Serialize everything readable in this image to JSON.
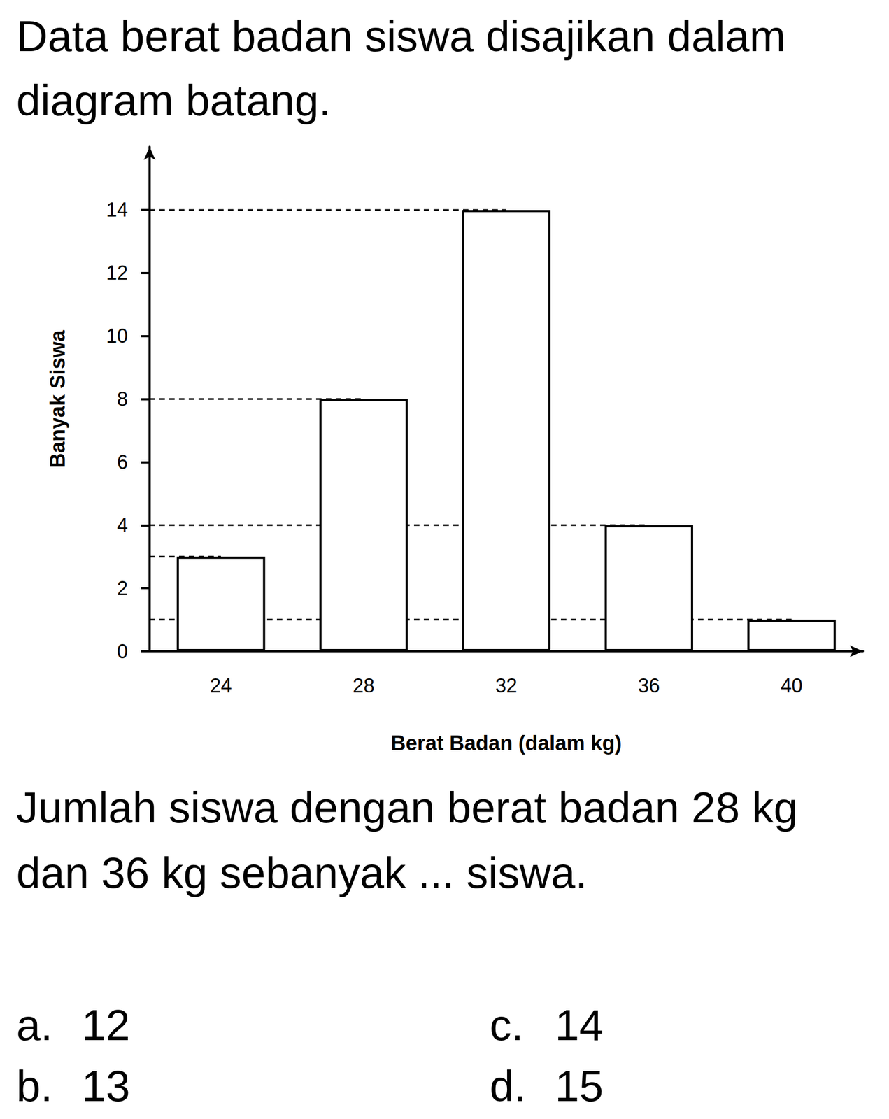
{
  "heading": "Data berat badan siswa disajikan dalam diagram batang.",
  "chart_data": {
    "type": "bar",
    "categories": [
      "24",
      "28",
      "32",
      "36",
      "40"
    ],
    "values": [
      3,
      8,
      14,
      4,
      1
    ],
    "color": "#ffffff",
    "x_label": "Berat Badan (dalam kg)",
    "y_label": "Banyak Siswa",
    "ylim": [
      0,
      16
    ],
    "yticks": [
      0,
      2,
      4,
      6,
      8,
      10,
      12,
      14
    ],
    "grid": false
  },
  "question": "Jumlah siswa dengan berat badan 28 kg dan 36 kg sebanyak ... siswa.",
  "options": [
    {
      "letter": "a.",
      "text": "12"
    },
    {
      "letter": "b.",
      "text": "13"
    },
    {
      "letter": "c.",
      "text": "14"
    },
    {
      "letter": "d.",
      "text": "15"
    }
  ]
}
